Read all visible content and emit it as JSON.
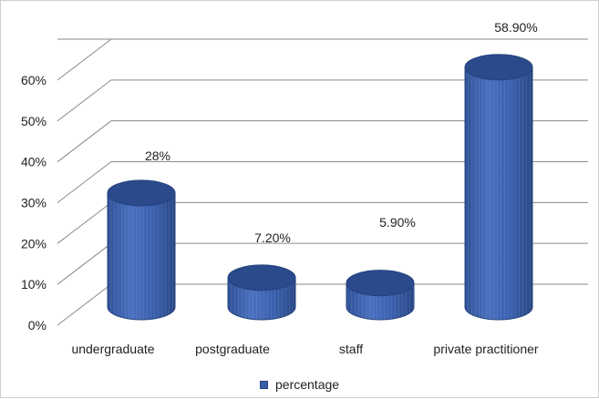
{
  "chart_data": {
    "type": "bar",
    "categories": [
      "undergraduate",
      "postgraduate",
      "staff",
      "private practitioner"
    ],
    "series": [
      {
        "name": "percentage",
        "values": [
          28,
          7.2,
          5.9,
          58.9
        ]
      }
    ],
    "data_labels": [
      "28%",
      "7.20%",
      "5.90%",
      "58.90%"
    ],
    "y_ticks": [
      "0%",
      "10%",
      "20%",
      "30%",
      "40%",
      "50%",
      "60%"
    ],
    "ylim": [
      0,
      60
    ],
    "grid": true,
    "legend": "bottom",
    "colors": {
      "bar_body": "#3a5ea8",
      "bar_top": "#2b4a8c",
      "bar_edge": "#24437d",
      "grid": "#8a8a8a",
      "text": "#222222"
    }
  },
  "legend": {
    "label": "percentage"
  }
}
